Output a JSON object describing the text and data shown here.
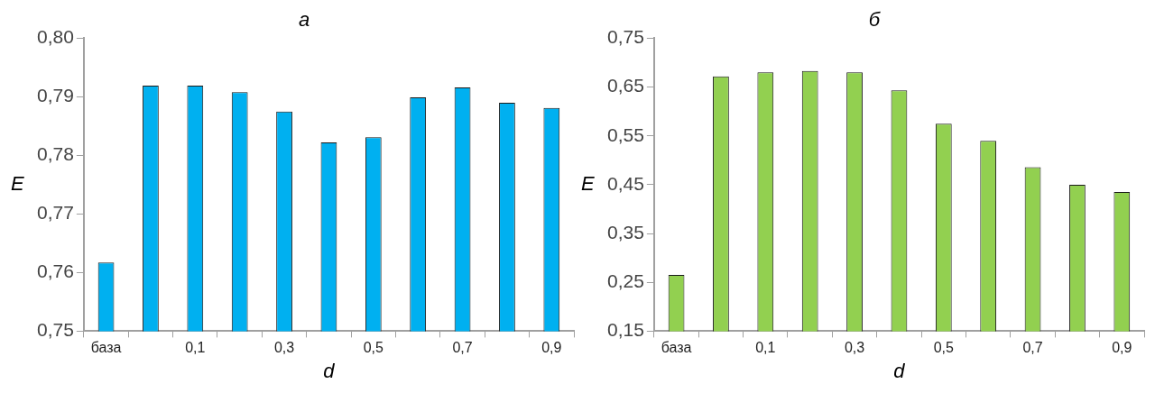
{
  "chart_data": [
    {
      "type": "bar",
      "title": "а",
      "xlabel": "d",
      "ylabel": "E",
      "categories": [
        "база",
        null,
        "0,1",
        null,
        "0,3",
        null,
        "0,5",
        null,
        "0,7",
        null,
        "0,9"
      ],
      "series": [
        {
          "color": "#00b0f0",
          "values": [
            0.7617,
            0.7919,
            0.7919,
            0.7908,
            0.7875,
            0.7822,
            0.7831,
            0.7899,
            0.7916,
            0.789,
            0.7881
          ]
        }
      ],
      "ylim": [
        0.75,
        0.8
      ],
      "yticks": [
        {
          "value": 0.75,
          "label": "0,75"
        },
        {
          "value": 0.76,
          "label": "0,76"
        },
        {
          "value": 0.77,
          "label": "0,77"
        },
        {
          "value": 0.78,
          "label": "0,78"
        },
        {
          "value": 0.79,
          "label": "0,79"
        },
        {
          "value": 0.8,
          "label": "0,80"
        }
      ],
      "grid": false,
      "legend": false
    },
    {
      "type": "bar",
      "title": "б",
      "xlabel": "d",
      "ylabel": "E",
      "categories": [
        "база",
        null,
        "0,1",
        null,
        "0,3",
        null,
        "0,5",
        null,
        "0,7",
        null,
        "0,9"
      ],
      "series": [
        {
          "color": "#92d050",
          "values": [
            0.265,
            0.672,
            0.68,
            0.683,
            0.68,
            0.643,
            0.575,
            0.54,
            0.486,
            0.45,
            0.435
          ]
        }
      ],
      "ylim": [
        0.15,
        0.75
      ],
      "yticks": [
        {
          "value": 0.15,
          "label": "0,15"
        },
        {
          "value": 0.25,
          "label": "0,25"
        },
        {
          "value": 0.35,
          "label": "0,35"
        },
        {
          "value": 0.45,
          "label": "0,45"
        },
        {
          "value": 0.55,
          "label": "0,55"
        },
        {
          "value": 0.65,
          "label": "0,65"
        },
        {
          "value": 0.75,
          "label": "0,75"
        }
      ],
      "grid": false,
      "legend": false
    }
  ]
}
